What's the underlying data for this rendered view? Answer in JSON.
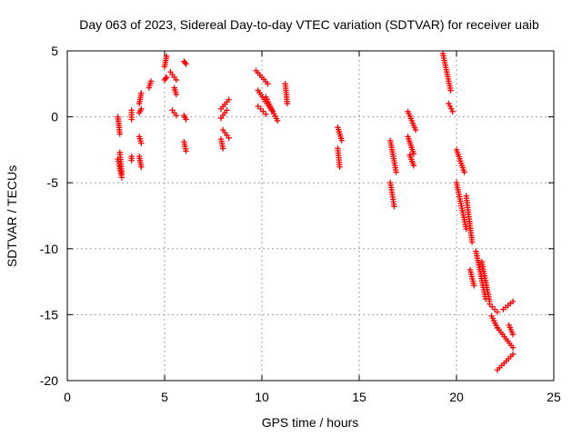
{
  "chart_data": {
    "type": "scatter",
    "title": "Day 063 of 2023, Sidereal Day-to-day VTEC variation (SDTVAR) for receiver uaib",
    "xlabel": "GPS time / hours",
    "ylabel": "SDTVAR / TECUs",
    "xlim": [
      0,
      25
    ],
    "ylim": [
      -20,
      5
    ],
    "xticks": [
      "0",
      "5",
      "10",
      "15",
      "20",
      "25"
    ],
    "yticks": [
      "5",
      "0",
      "-5",
      "-10",
      "-15",
      "-20"
    ],
    "grid": true,
    "marker": "plus",
    "series": [
      {
        "name": "uaib",
        "color": "#ff0000",
        "segments": [
          {
            "x0": 2.6,
            "x1": 2.7,
            "y0": 0.0,
            "y1": -1.3
          },
          {
            "x0": 2.6,
            "x1": 2.8,
            "y0": -3.2,
            "y1": -4.6
          },
          {
            "x0": 2.7,
            "x1": 2.8,
            "y0": -2.7,
            "y1": -4.3
          },
          {
            "x0": 3.3,
            "x1": 3.3,
            "y0": -0.2,
            "y1": 0.5
          },
          {
            "x0": 3.3,
            "x1": 3.3,
            "y0": -3.0,
            "y1": -3.3
          },
          {
            "x0": 3.7,
            "x1": 3.8,
            "y0": 1.0,
            "y1": 1.8
          },
          {
            "x0": 3.7,
            "x1": 3.8,
            "y0": 0.3,
            "y1": 0.6
          },
          {
            "x0": 3.7,
            "x1": 3.8,
            "y0": -1.5,
            "y1": -2.0
          },
          {
            "x0": 3.7,
            "x1": 3.8,
            "y0": -3.0,
            "y1": -3.8
          },
          {
            "x0": 4.2,
            "x1": 4.3,
            "y0": 2.2,
            "y1": 2.7
          },
          {
            "x0": 5.0,
            "x1": 5.1,
            "y0": 3.8,
            "y1": 4.6
          },
          {
            "x0": 5.0,
            "x1": 5.1,
            "y0": 2.8,
            "y1": 3.0
          },
          {
            "x0": 5.3,
            "x1": 5.6,
            "y0": 3.4,
            "y1": 2.8
          },
          {
            "x0": 5.5,
            "x1": 5.6,
            "y0": 2.2,
            "y1": 1.7
          },
          {
            "x0": 5.4,
            "x1": 5.6,
            "y0": 0.5,
            "y1": 0.1
          },
          {
            "x0": 6.0,
            "x1": 6.1,
            "y0": 4.2,
            "y1": 4.0
          },
          {
            "x0": 6.0,
            "x1": 6.1,
            "y0": 0.1,
            "y1": -0.2
          },
          {
            "x0": 6.0,
            "x1": 6.1,
            "y0": -1.9,
            "y1": -2.6
          },
          {
            "x0": 7.9,
            "x1": 8.3,
            "y0": 0.6,
            "y1": 1.3
          },
          {
            "x0": 7.9,
            "x1": 8.2,
            "y0": -0.1,
            "y1": 0.5
          },
          {
            "x0": 7.9,
            "x1": 8.0,
            "y0": -1.7,
            "y1": -2.4
          },
          {
            "x0": 8.0,
            "x1": 8.3,
            "y0": -1.0,
            "y1": -1.6
          },
          {
            "x0": 9.7,
            "x1": 10.3,
            "y0": 3.5,
            "y1": 2.5
          },
          {
            "x0": 9.8,
            "x1": 10.5,
            "y0": 2.0,
            "y1": 0.5
          },
          {
            "x0": 9.8,
            "x1": 10.2,
            "y0": 0.8,
            "y1": 0.2
          },
          {
            "x0": 10.2,
            "x1": 10.8,
            "y0": 1.5,
            "y1": -0.3
          },
          {
            "x0": 11.2,
            "x1": 11.3,
            "y0": 2.5,
            "y1": 1.0
          },
          {
            "x0": 13.9,
            "x1": 14.1,
            "y0": -0.8,
            "y1": -1.8
          },
          {
            "x0": 13.9,
            "x1": 14.0,
            "y0": -2.4,
            "y1": -3.8
          },
          {
            "x0": 16.6,
            "x1": 16.9,
            "y0": -1.8,
            "y1": -4.2
          },
          {
            "x0": 16.6,
            "x1": 16.8,
            "y0": -5.0,
            "y1": -6.8
          },
          {
            "x0": 17.5,
            "x1": 17.9,
            "y0": 0.4,
            "y1": -1.0
          },
          {
            "x0": 17.5,
            "x1": 17.8,
            "y0": -1.5,
            "y1": -2.8
          },
          {
            "x0": 17.6,
            "x1": 17.8,
            "y0": -2.9,
            "y1": -3.7
          },
          {
            "x0": 19.3,
            "x1": 19.7,
            "y0": 4.8,
            "y1": 2.0
          },
          {
            "x0": 19.6,
            "x1": 19.8,
            "y0": 1.0,
            "y1": 0.4
          },
          {
            "x0": 20.0,
            "x1": 20.4,
            "y0": -2.5,
            "y1": -4.2
          },
          {
            "x0": 20.0,
            "x1": 20.5,
            "y0": -5.0,
            "y1": -8.5
          },
          {
            "x0": 20.5,
            "x1": 20.8,
            "y0": -6.0,
            "y1": -9.5
          },
          {
            "x0": 20.7,
            "x1": 20.9,
            "y0": -11.6,
            "y1": -12.8
          },
          {
            "x0": 21.0,
            "x1": 21.5,
            "y0": -10.2,
            "y1": -13.8
          },
          {
            "x0": 21.3,
            "x1": 21.7,
            "y0": -11.0,
            "y1": -14.0
          },
          {
            "x0": 21.7,
            "x1": 22.1,
            "y0": -14.2,
            "y1": -14.8
          },
          {
            "x0": 21.8,
            "x1": 22.1,
            "y0": -15.1,
            "y1": -16.0
          },
          {
            "x0": 22.1,
            "x1": 22.9,
            "y0": -16.0,
            "y1": -17.5
          },
          {
            "x0": 22.4,
            "x1": 22.9,
            "y0": -14.6,
            "y1": -14.0
          },
          {
            "x0": 22.7,
            "x1": 22.9,
            "y0": -15.8,
            "y1": -16.5
          },
          {
            "x0": 22.1,
            "x1": 22.9,
            "y0": -19.2,
            "y1": -18.0
          }
        ]
      }
    ]
  }
}
